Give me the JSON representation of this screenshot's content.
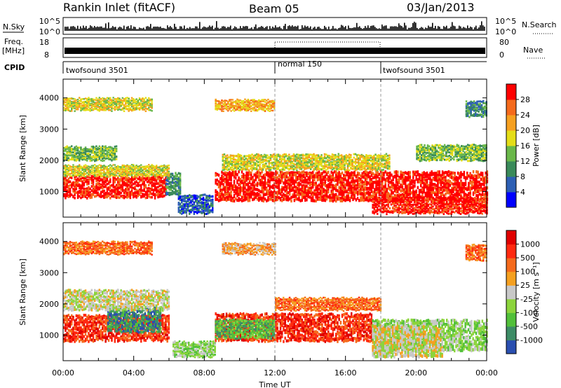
{
  "header": {
    "station": "Rankin Inlet (fitACF)",
    "beam": "Beam 05",
    "date": "03/Jan/2013"
  },
  "strips": {
    "nsky_label": "N.Sky",
    "nsearch_label": "N.Search",
    "nsky_ticks": [
      "10^5",
      "10^0"
    ],
    "nsearch_ticks": [
      "10^5",
      "10^0"
    ],
    "freq_label_1": "Freq.",
    "freq_label_2": "[MHz]",
    "freq_ticks": [
      "18",
      "8"
    ],
    "nave_label": "Nave",
    "nave_ticks": [
      "80",
      "0"
    ],
    "cpid_label": "CPID",
    "cpid_segments": [
      "twofsound 3501",
      "normal 150",
      "twofsound 3501"
    ],
    "cpid_boundaries_hours": [
      12,
      18
    ]
  },
  "chart_data": [
    {
      "type": "heatmap",
      "panel": "power",
      "ylabel": "Slant Range [km]",
      "xlim": [
        0,
        24
      ],
      "ylim": [
        180,
        4600
      ],
      "y_ticks": [
        "1000",
        "2000",
        "3000",
        "4000"
      ],
      "colorbar": {
        "label": "Power [dB]",
        "ticks": [
          "4",
          "8",
          "12",
          "16",
          "20",
          "24",
          "28"
        ],
        "colors": [
          "#0000ff",
          "#2d5fb4",
          "#3a8a5a",
          "#6ab84a",
          "#e4dd18",
          "#f6a020",
          "#f56a1c",
          "#ff0000"
        ]
      },
      "bands": [
        {
          "t0": 0.0,
          "t1": 5.8,
          "r0": 800,
          "r1": 1500,
          "level": 7
        },
        {
          "t0": 5.8,
          "t1": 6.6,
          "r0": 900,
          "r1": 1600,
          "level": 2
        },
        {
          "t0": 8.6,
          "t1": 24.0,
          "r0": 700,
          "r1": 1650,
          "level": 7
        },
        {
          "t0": 0.0,
          "t1": 6.0,
          "r0": 1500,
          "r1": 1850,
          "level": 4
        },
        {
          "t0": 0.0,
          "t1": 3.0,
          "r0": 2000,
          "r1": 2450,
          "level": 3
        },
        {
          "t0": 0.0,
          "t1": 5.0,
          "r0": 3600,
          "r1": 4000,
          "level": 4
        },
        {
          "t0": 8.6,
          "t1": 12.0,
          "r0": 3600,
          "r1": 3950,
          "level": 5
        },
        {
          "t0": 9.0,
          "t1": 18.5,
          "r0": 1700,
          "r1": 2200,
          "level": 4
        },
        {
          "t0": 17.5,
          "t1": 24.0,
          "r0": 300,
          "r1": 800,
          "level": 7
        },
        {
          "t0": 6.5,
          "t1": 8.5,
          "r0": 300,
          "r1": 900,
          "level": 1
        },
        {
          "t0": 22.8,
          "t1": 24.0,
          "r0": 3400,
          "r1": 3900,
          "level": 2
        },
        {
          "t0": 20.0,
          "t1": 24.0,
          "r0": 2000,
          "r1": 2500,
          "level": 3
        }
      ]
    },
    {
      "type": "heatmap",
      "panel": "velocity",
      "ylabel": "Slant Range [km]",
      "xlim": [
        0,
        24
      ],
      "ylim": [
        180,
        4600
      ],
      "y_ticks": [
        "1000",
        "2000",
        "3000",
        "4000"
      ],
      "x_ticks": [
        "00:00",
        "04:00",
        "08:00",
        "12:00",
        "16:00",
        "20:00",
        "00:00"
      ],
      "xlabel": "Time UT",
      "colorbar": {
        "label": "Velocity [m s⁻¹]",
        "ticks": [
          "1000",
          "500",
          "100",
          "25",
          "-25",
          "-100",
          "-500",
          "-1000"
        ],
        "colors": [
          "#2a4fb0",
          "#3d8c66",
          "#52c03a",
          "#8cd43c",
          "#c8c8c8",
          "#f5a020",
          "#f56a1c",
          "#ff2a10",
          "#e00000"
        ]
      },
      "bands": [
        {
          "t0": 0.0,
          "t1": 6.0,
          "r0": 800,
          "r1": 1650,
          "level": 7
        },
        {
          "t0": 2.5,
          "t1": 5.5,
          "r0": 1100,
          "r1": 1900,
          "level": 1
        },
        {
          "t0": 8.6,
          "t1": 17.5,
          "r0": 800,
          "r1": 1700,
          "level": 7
        },
        {
          "t0": 8.6,
          "t1": 12.0,
          "r0": 900,
          "r1": 1500,
          "level": 2
        },
        {
          "t0": 17.5,
          "t1": 24.0,
          "r0": 500,
          "r1": 1500,
          "level": 3
        },
        {
          "t0": 17.5,
          "t1": 21.5,
          "r0": 300,
          "r1": 1300,
          "level": 4
        },
        {
          "t0": 0.0,
          "t1": 6.0,
          "r0": 1800,
          "r1": 2450,
          "level": 4
        },
        {
          "t0": 0.0,
          "t1": 5.0,
          "r0": 3600,
          "r1": 4000,
          "level": 6
        },
        {
          "t0": 9.0,
          "t1": 12.0,
          "r0": 3600,
          "r1": 3950,
          "level": 5
        },
        {
          "t0": 12.0,
          "t1": 18.0,
          "r0": 1800,
          "r1": 2200,
          "level": 6
        },
        {
          "t0": 6.2,
          "t1": 8.6,
          "r0": 300,
          "r1": 800,
          "level": 3
        },
        {
          "t0": 22.8,
          "t1": 24.0,
          "r0": 3400,
          "r1": 3900,
          "level": 6
        }
      ]
    }
  ]
}
